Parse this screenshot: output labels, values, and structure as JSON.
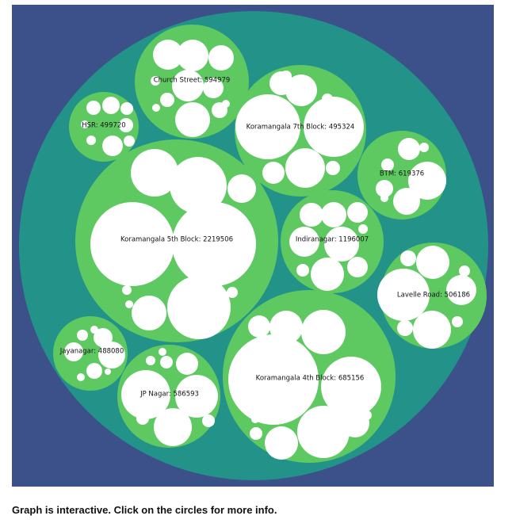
{
  "caption": "Graph is interactive. Click on the circles for more info.",
  "colors": {
    "background": "#3c5089",
    "root": "#23938a",
    "group": "#5fc961",
    "leaf": "#ffffff"
  },
  "chart_data": {
    "type": "circle-packing",
    "groups": [
      {
        "name": "Church Street",
        "value": 594979,
        "label": "Church Street: 594979"
      },
      {
        "name": "HSR",
        "value": 499720,
        "label": "HSR: 499720"
      },
      {
        "name": "Koramangala 7th Block",
        "value": 495324,
        "label": "Koramangala 7th Block: 495324"
      },
      {
        "name": "BTM",
        "value": 619376,
        "label": "BTM: 619376"
      },
      {
        "name": "Koramangala 5th Block",
        "value": 2219506,
        "label": "Koramangala 5th Block: 2219506"
      },
      {
        "name": "Indiranagar",
        "value": 1196007,
        "label": "Indiranagar: 1196007"
      },
      {
        "name": "Lavelle Road",
        "value": 506186,
        "label": "Lavelle Road: 506186"
      },
      {
        "name": "Jayanagar",
        "value": 488080,
        "label": "Jayanagar: 488080"
      },
      {
        "name": "JP Nagar",
        "value": 586593,
        "label": "JP Nagar: 586593"
      },
      {
        "name": "Koramangala 4th Block",
        "value": 685156,
        "label": "Koramangala 4th Block: 685156"
      }
    ]
  }
}
